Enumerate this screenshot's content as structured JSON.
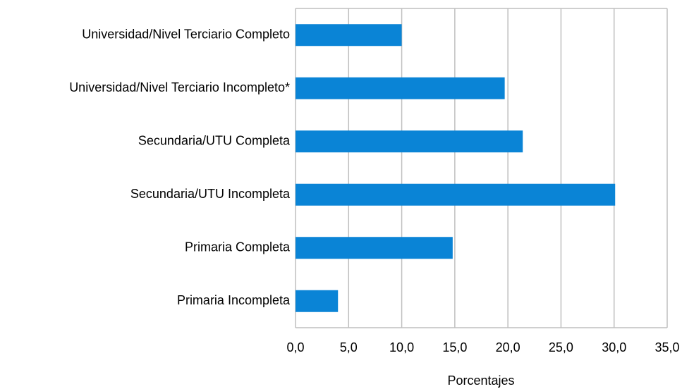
{
  "chart_data": {
    "type": "bar",
    "orientation": "horizontal",
    "x_label": "Porcentajes",
    "categories": [
      "Universidad/Nivel Terciario Completo",
      "Universidad/Nivel Terciario Incompleto*",
      "Secundaria/UTU Completa",
      "Secundaria/UTU Incompleta",
      "Primaria Completa",
      "Primaria Incompleta"
    ],
    "values": [
      10.0,
      19.7,
      21.4,
      30.1,
      14.8,
      4.0
    ],
    "color": "#0a84d6",
    "xlim": [
      0,
      35
    ],
    "xticks": [
      {
        "value": 0,
        "label": "0,0"
      },
      {
        "value": 5,
        "label": "5,0"
      },
      {
        "value": 10,
        "label": "10,0"
      },
      {
        "value": 15,
        "label": "15,0"
      },
      {
        "value": 20,
        "label": "20,0"
      },
      {
        "value": 25,
        "label": "25,0"
      },
      {
        "value": 30,
        "label": "30,0"
      },
      {
        "value": 35,
        "label": "35,0"
      }
    ],
    "grid": true
  }
}
